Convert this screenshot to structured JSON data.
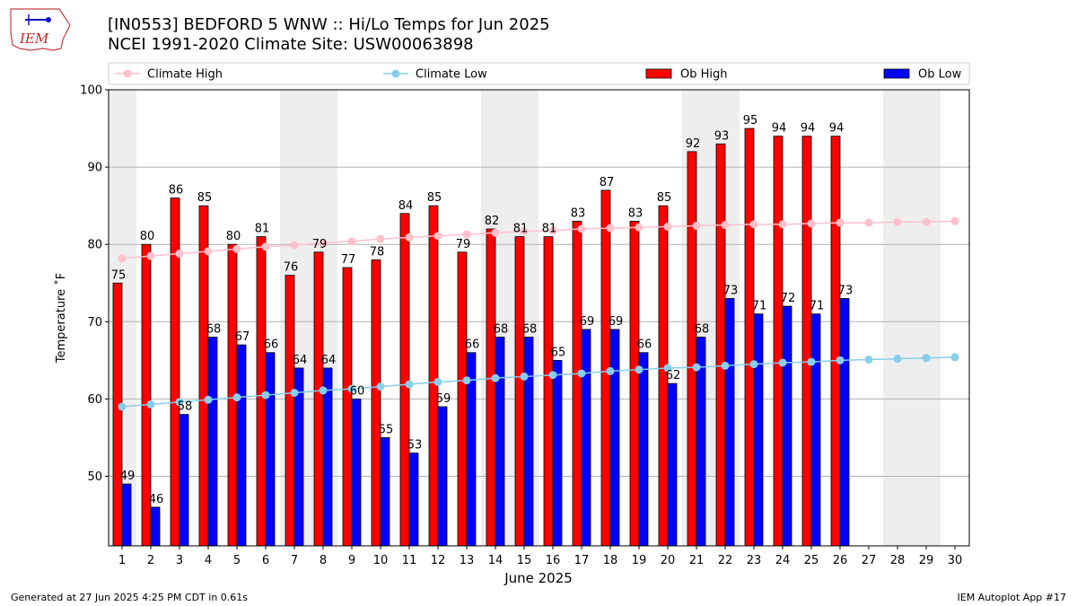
{
  "logo": {
    "text": "IEM"
  },
  "header": {
    "title_line1": "[IN0553] BEDFORD 5 WNW :: Hi/Lo Temps for Jun 2025",
    "title_line2": "NCEI 1991-2020 Climate Site: USW00063898"
  },
  "footer": {
    "left": "Generated at 27 Jun 2025 4:25 PM CDT in 0.61s",
    "right": "IEM Autoplot App #17"
  },
  "colors": {
    "ob_high": "#ff0000",
    "ob_low": "#0000ff",
    "climate_high": "#ffc0cb",
    "climate_low": "#87ceeb",
    "weekend_shade": "#eeeeee",
    "grid": "#b0b0b0"
  },
  "chart_data": {
    "type": "bar",
    "xlabel": "June 2025",
    "ylabel": "Temperature ˚F",
    "ylim": [
      41,
      100
    ],
    "yticks": [
      50,
      60,
      70,
      80,
      90,
      100
    ],
    "grid": true,
    "legend_position": "top",
    "days": [
      1,
      2,
      3,
      4,
      5,
      6,
      7,
      8,
      9,
      10,
      11,
      12,
      13,
      14,
      15,
      16,
      17,
      18,
      19,
      20,
      21,
      22,
      23,
      24,
      25,
      26,
      27,
      28,
      29,
      30
    ],
    "weekend_days": [
      1,
      7,
      8,
      14,
      15,
      21,
      22,
      28,
      29
    ],
    "series": [
      {
        "name": "Climate High",
        "kind": "line",
        "values": [
          78.2,
          78.5,
          78.8,
          79.1,
          79.4,
          79.7,
          79.9,
          80.2,
          80.4,
          80.7,
          80.9,
          81.1,
          81.3,
          81.5,
          81.7,
          81.8,
          82.0,
          82.1,
          82.2,
          82.3,
          82.4,
          82.5,
          82.6,
          82.6,
          82.7,
          82.8,
          82.8,
          82.9,
          82.9,
          83.0
        ]
      },
      {
        "name": "Climate Low",
        "kind": "line",
        "values": [
          59.0,
          59.3,
          59.6,
          59.9,
          60.2,
          60.5,
          60.8,
          61.1,
          61.3,
          61.6,
          61.9,
          62.2,
          62.4,
          62.7,
          62.9,
          63.1,
          63.3,
          63.6,
          63.8,
          64.0,
          64.1,
          64.3,
          64.5,
          64.7,
          64.8,
          65.0,
          65.1,
          65.2,
          65.3,
          65.4
        ]
      },
      {
        "name": "Ob High",
        "kind": "bar",
        "values": [
          75,
          80,
          86,
          85,
          80,
          81,
          76,
          79,
          77,
          78,
          84,
          85,
          79,
          82,
          81,
          81,
          83,
          87,
          83,
          85,
          92,
          93,
          95,
          94,
          94,
          94,
          null,
          null,
          null,
          null
        ]
      },
      {
        "name": "Ob Low",
        "kind": "bar",
        "values": [
          49,
          46,
          58,
          68,
          67,
          66,
          64,
          64,
          60,
          55,
          53,
          59,
          66,
          68,
          68,
          65,
          69,
          69,
          66,
          62,
          68,
          73,
          71,
          72,
          71,
          73,
          null,
          null,
          null,
          null
        ]
      }
    ]
  }
}
